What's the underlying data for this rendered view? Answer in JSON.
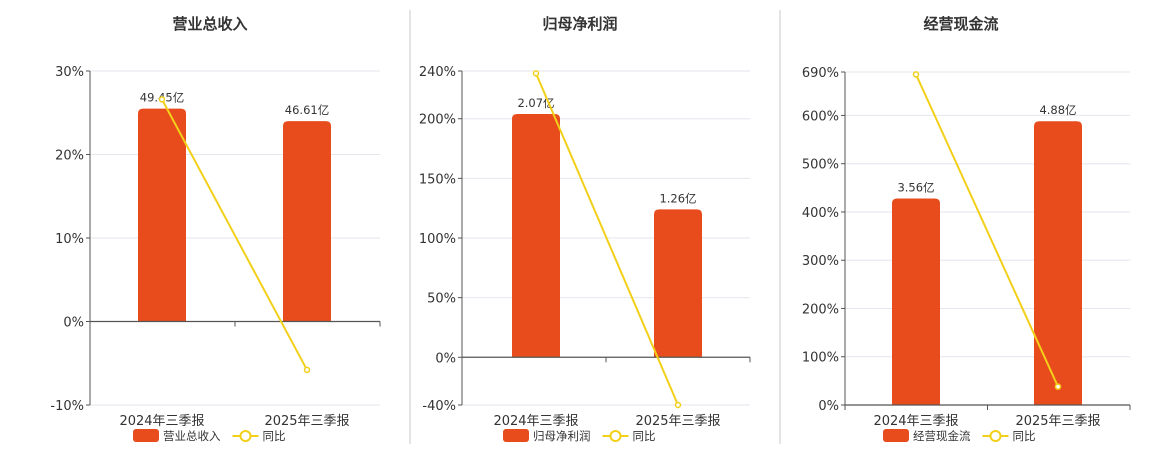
{
  "chart_data": [
    {
      "type": "bar",
      "title": "营业总收入",
      "categories": [
        "2024年三季报",
        "2025年三季报"
      ],
      "bar_labels": [
        "49.45亿",
        "46.61亿"
      ],
      "y_ticks": [
        "30%",
        "20%",
        "10%",
        "0%",
        "-10%"
      ],
      "ylim": [
        -10,
        30
      ],
      "y_tick_values": [
        30,
        20,
        10,
        0,
        -10
      ],
      "bar_values": [
        25.5,
        24.0
      ],
      "line_values": [
        26.6,
        -5.8
      ],
      "legend": [
        "营业总收入",
        "同比"
      ]
    },
    {
      "type": "bar",
      "title": "归母净利润",
      "categories": [
        "2024年三季报",
        "2025年三季报"
      ],
      "bar_labels": [
        "2.07亿",
        "1.26亿"
      ],
      "y_ticks": [
        "240%",
        "200%",
        "150%",
        "100%",
        "50%",
        "0%",
        "-40%"
      ],
      "ylim": [
        -40,
        240
      ],
      "y_tick_values": [
        240,
        200,
        150,
        100,
        50,
        0,
        -40
      ],
      "bar_values": [
        204,
        124
      ],
      "line_values": [
        238,
        -40
      ],
      "legend": [
        "归母净利润",
        "同比"
      ]
    },
    {
      "type": "bar",
      "title": "经营现金流",
      "categories": [
        "2024年三季报",
        "2025年三季报"
      ],
      "bar_labels": [
        "3.56亿",
        "4.88亿"
      ],
      "y_ticks": [
        "690%",
        "600%",
        "500%",
        "400%",
        "300%",
        "200%",
        "100%",
        "0%"
      ],
      "ylim": [
        0,
        690
      ],
      "y_tick_values": [
        690,
        600,
        500,
        400,
        300,
        200,
        100,
        0
      ],
      "bar_values": [
        428,
        588
      ],
      "line_values": [
        685,
        38
      ],
      "legend": [
        "经营现金流",
        "同比"
      ]
    }
  ],
  "colors": {
    "bar": "#e84c1c",
    "line": "#f2d01a",
    "grid": "#e6e6ee",
    "axis": "#555555",
    "divider": "#c8c8c8"
  }
}
